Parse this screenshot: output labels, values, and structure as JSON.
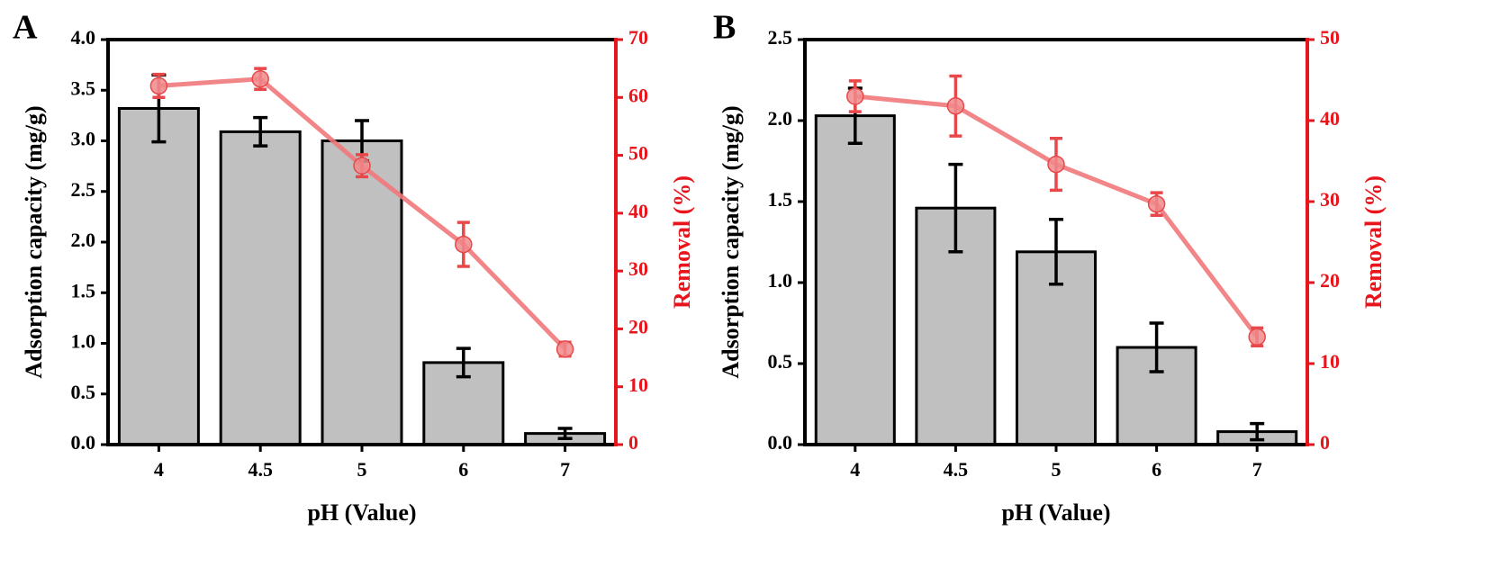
{
  "chart_data": [
    {
      "panel_label": "A",
      "type": "bar",
      "secondary_type": "line",
      "categories": [
        "4",
        "4.5",
        "5",
        "6",
        "7"
      ],
      "xlabel": "pH (Value)",
      "ylabel": "Adsorption capacity (mg/g)",
      "ylim": [
        0,
        4.0
      ],
      "yticks": [
        "0.0",
        "0.5",
        "1.0",
        "1.5",
        "2.0",
        "2.5",
        "3.0",
        "3.5",
        "4.0"
      ],
      "y2label": "Removal (%)",
      "y2lim": [
        0,
        70
      ],
      "y2ticks": [
        "0",
        "10",
        "20",
        "30",
        "40",
        "50",
        "60",
        "70"
      ],
      "series": [
        {
          "name": "Adsorption capacity",
          "axis": "left",
          "values": [
            3.32,
            3.09,
            3.0,
            0.81,
            0.11
          ],
          "errors": [
            0.33,
            0.14,
            0.2,
            0.14,
            0.05
          ]
        },
        {
          "name": "Removal",
          "axis": "right",
          "values": [
            62,
            63.2,
            48.2,
            34.6,
            16.5
          ],
          "errors": [
            2.0,
            1.8,
            1.9,
            3.8,
            1.2
          ]
        }
      ]
    },
    {
      "panel_label": "B",
      "type": "bar",
      "secondary_type": "line",
      "categories": [
        "4",
        "4.5",
        "5",
        "6",
        "7"
      ],
      "xlabel": "pH (Value)",
      "ylabel": "Adsorption capacity (mg/g)",
      "ylim": [
        0,
        2.5
      ],
      "yticks": [
        "0.0",
        "0.5",
        "1.0",
        "1.5",
        "2.0",
        "2.5"
      ],
      "y2label": "Removal (%)",
      "y2lim": [
        0,
        50
      ],
      "y2ticks": [
        "0",
        "10",
        "20",
        "30",
        "40",
        "50"
      ],
      "series": [
        {
          "name": "Adsorption capacity",
          "axis": "left",
          "values": [
            2.03,
            1.46,
            1.19,
            0.6,
            0.08
          ],
          "errors": [
            0.17,
            0.27,
            0.2,
            0.15,
            0.05
          ]
        },
        {
          "name": "Removal",
          "axis": "right",
          "values": [
            43.0,
            41.8,
            34.6,
            29.7,
            13.3
          ],
          "errors": [
            1.9,
            3.7,
            3.2,
            1.4,
            1.1
          ]
        }
      ]
    }
  ],
  "colors": {
    "bar_fill": "#c0c0c0",
    "bar_stroke": "#000000",
    "removal_line": "#f0787a",
    "removal_marker": "#f08a8c",
    "removal_error": "#e8484a",
    "right_axis": "#e8161c",
    "left_axis": "#000000"
  }
}
